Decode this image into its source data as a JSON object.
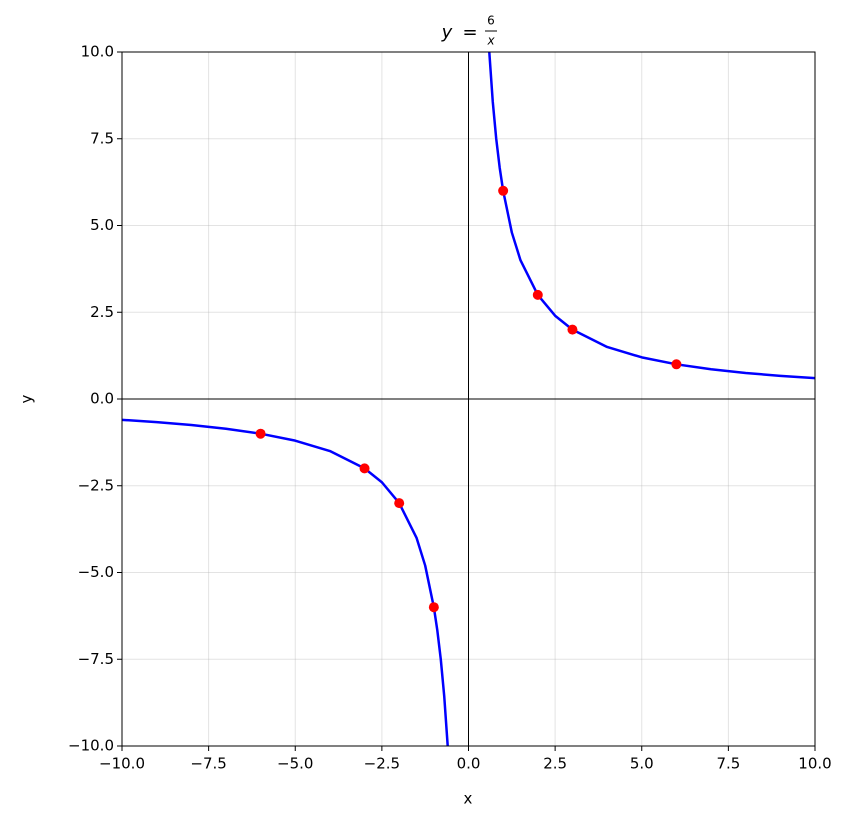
{
  "chart_data": {
    "type": "line",
    "title": {
      "lhs": "y",
      "relation": "=",
      "numerator": "6",
      "denominator": "x"
    },
    "x_label": "x",
    "y_label": "y",
    "xlim": [
      -10,
      10
    ],
    "ylim": [
      -10,
      10
    ],
    "xticks": [
      {
        "value": -10,
        "label": "−10.0"
      },
      {
        "value": -7.5,
        "label": "−7.5"
      },
      {
        "value": -5,
        "label": "−5.0"
      },
      {
        "value": -2.5,
        "label": "−2.5"
      },
      {
        "value": 0,
        "label": "0.0"
      },
      {
        "value": 2.5,
        "label": "2.5"
      },
      {
        "value": 5,
        "label": "5.0"
      },
      {
        "value": 7.5,
        "label": "7.5"
      },
      {
        "value": 10,
        "label": "10.0"
      }
    ],
    "yticks": [
      {
        "value": -10,
        "label": "−10.0"
      },
      {
        "value": -7.5,
        "label": "−7.5"
      },
      {
        "value": -5,
        "label": "−5.0"
      },
      {
        "value": -2.5,
        "label": "−2.5"
      },
      {
        "value": 0,
        "label": "0.0"
      },
      {
        "value": 2.5,
        "label": "2.5"
      },
      {
        "value": 5,
        "label": "5.0"
      },
      {
        "value": 7.5,
        "label": "7.5"
      },
      {
        "value": 10,
        "label": "10.0"
      }
    ],
    "grid": true,
    "zero_axes": true,
    "series": [
      {
        "style": "line",
        "color": "#0000ff",
        "x": [
          -10,
          -9,
          -8,
          -7,
          -6,
          -5,
          -4,
          -3,
          -2.5,
          -2,
          -1.5,
          -1.25,
          -1,
          -0.9,
          -0.8,
          -0.7,
          -0.6,
          0,
          0.6,
          0.7,
          0.8,
          0.9,
          1,
          1.25,
          1.5,
          2,
          2.5,
          3,
          4,
          5,
          6,
          7,
          8,
          9,
          10
        ],
        "values": [
          -0.6,
          -0.667,
          -0.75,
          -0.857,
          -1,
          -1.2,
          -1.5,
          -2,
          -2.4,
          -3,
          -4,
          -4.8,
          -6,
          -6.667,
          -7.5,
          -8.571,
          -10,
          null,
          10,
          8.571,
          7.5,
          6.667,
          6,
          4.8,
          4,
          3,
          2.4,
          2,
          1.5,
          1.2,
          1,
          0.857,
          0.75,
          0.667,
          0.6
        ]
      },
      {
        "style": "markers",
        "color": "#ff0000",
        "x": [
          -6,
          -3,
          -2,
          -1,
          1,
          2,
          3,
          6
        ],
        "values": [
          -1,
          -2,
          -3,
          -6,
          6,
          3,
          2,
          1
        ]
      }
    ]
  }
}
